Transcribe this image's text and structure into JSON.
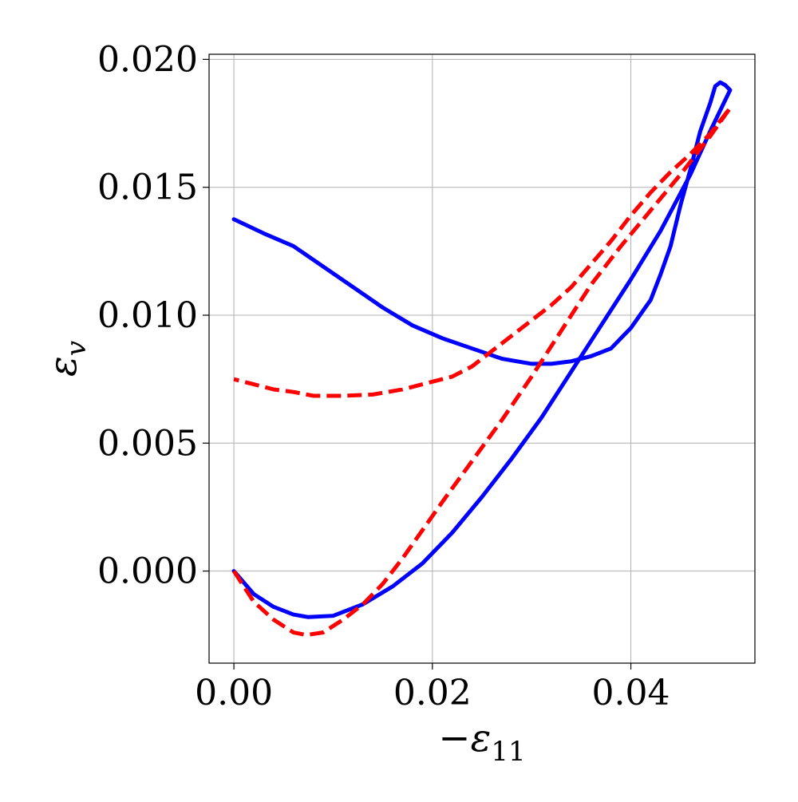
{
  "chart_data": {
    "type": "line",
    "xlabel": "−ε11",
    "ylabel": "εv",
    "xlim": [
      -0.0025,
      0.0525
    ],
    "ylim": [
      -0.0036,
      0.0202
    ],
    "grid": true,
    "x_ticks": [
      0.0,
      0.02,
      0.04
    ],
    "x_tick_labels": [
      "0.00",
      "0.02",
      "0.04"
    ],
    "y_ticks": [
      0.0,
      0.005,
      0.01,
      0.015,
      0.02
    ],
    "y_tick_labels": [
      "0.000",
      "0.005",
      "0.010",
      "0.015",
      "0.020"
    ],
    "series": [
      {
        "style": "solid",
        "color": "#0000ff",
        "points": [
          [
            0.0,
            0.0
          ],
          [
            0.002,
            -0.0009
          ],
          [
            0.004,
            -0.0014
          ],
          [
            0.006,
            -0.0017
          ],
          [
            0.0075,
            -0.0018
          ],
          [
            0.01,
            -0.00175
          ],
          [
            0.013,
            -0.0013
          ],
          [
            0.016,
            -0.0006
          ],
          [
            0.019,
            0.0003
          ],
          [
            0.022,
            0.0015
          ],
          [
            0.025,
            0.0029
          ],
          [
            0.028,
            0.0044
          ],
          [
            0.031,
            0.006
          ],
          [
            0.034,
            0.0078
          ],
          [
            0.037,
            0.0096
          ],
          [
            0.04,
            0.0114
          ],
          [
            0.043,
            0.0133
          ],
          [
            0.046,
            0.0155
          ],
          [
            0.048,
            0.0172
          ],
          [
            0.05,
            0.0188
          ],
          [
            0.0495,
            0.019
          ],
          [
            0.049,
            0.0191
          ],
          [
            0.0485,
            0.01895
          ],
          [
            0.048,
            0.0183
          ],
          [
            0.047,
            0.0172
          ],
          [
            0.046,
            0.0157
          ],
          [
            0.045,
            0.0143
          ],
          [
            0.044,
            0.0127
          ],
          [
            0.043,
            0.0116
          ],
          [
            0.042,
            0.0106
          ],
          [
            0.04,
            0.0095
          ],
          [
            0.038,
            0.0087
          ],
          [
            0.036,
            0.0084
          ],
          [
            0.034,
            0.0082
          ],
          [
            0.032,
            0.0081
          ],
          [
            0.03,
            0.0081
          ],
          [
            0.027,
            0.0083
          ],
          [
            0.024,
            0.0087
          ],
          [
            0.021,
            0.0091
          ],
          [
            0.018,
            0.0096
          ],
          [
            0.015,
            0.0103
          ],
          [
            0.012,
            0.0111
          ],
          [
            0.009,
            0.0119
          ],
          [
            0.006,
            0.0127
          ],
          [
            0.003,
            0.0132
          ],
          [
            0.0,
            0.01375
          ]
        ]
      },
      {
        "style": "dashed",
        "color": "#ff0000",
        "points": [
          [
            0.0,
            0.0
          ],
          [
            0.002,
            -0.0012
          ],
          [
            0.004,
            -0.0019
          ],
          [
            0.006,
            -0.0024
          ],
          [
            0.0073,
            -0.0025
          ],
          [
            0.009,
            -0.0024
          ],
          [
            0.011,
            -0.0019
          ],
          [
            0.013,
            -0.0013
          ],
          [
            0.015,
            -0.0005
          ],
          [
            0.017,
            0.0005
          ],
          [
            0.019,
            0.0016
          ],
          [
            0.021,
            0.0027
          ],
          [
            0.024,
            0.0043
          ],
          [
            0.027,
            0.0059
          ],
          [
            0.03,
            0.0076
          ],
          [
            0.033,
            0.0094
          ],
          [
            0.036,
            0.0112
          ],
          [
            0.039,
            0.0127
          ],
          [
            0.042,
            0.0141
          ],
          [
            0.045,
            0.0155
          ],
          [
            0.048,
            0.017
          ],
          [
            0.05,
            0.0181
          ],
          [
            0.048,
            0.0171
          ],
          [
            0.046,
            0.0163
          ],
          [
            0.044,
            0.0156
          ],
          [
            0.042,
            0.0148
          ],
          [
            0.04,
            0.0139
          ],
          [
            0.038,
            0.0129
          ],
          [
            0.036,
            0.012
          ],
          [
            0.034,
            0.0111
          ],
          [
            0.032,
            0.0104
          ],
          [
            0.03,
            0.0098
          ],
          [
            0.028,
            0.0092
          ],
          [
            0.026,
            0.0086
          ],
          [
            0.024,
            0.008
          ],
          [
            0.022,
            0.0076
          ],
          [
            0.02,
            0.0074
          ],
          [
            0.017,
            0.0071
          ],
          [
            0.014,
            0.0069
          ],
          [
            0.011,
            0.00685
          ],
          [
            0.008,
            0.00685
          ],
          [
            0.006,
            0.007
          ],
          [
            0.004,
            0.0071
          ],
          [
            0.002,
            0.0073
          ],
          [
            0.0,
            0.0075
          ]
        ]
      }
    ]
  }
}
